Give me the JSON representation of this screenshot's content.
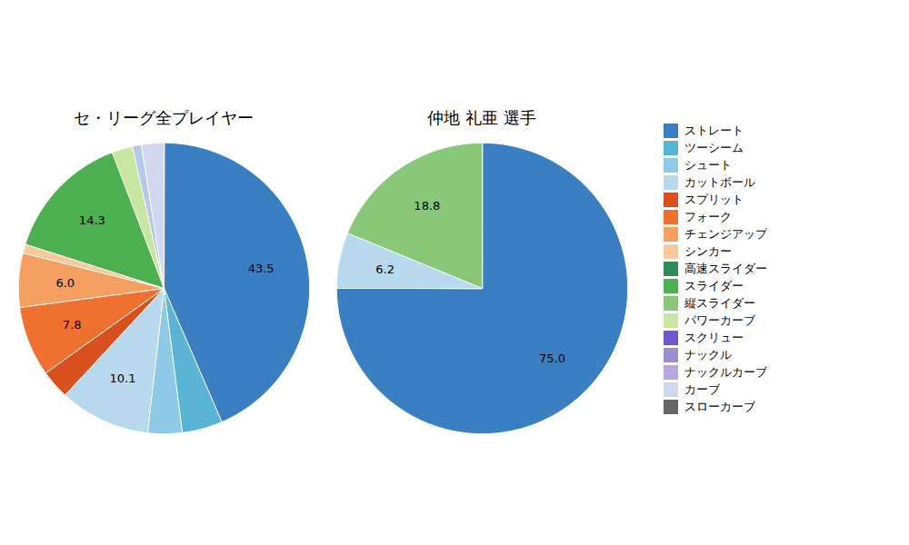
{
  "chart_data": [
    {
      "type": "pie",
      "title": "セ・リーグ全プレイヤー",
      "values": [
        43.5,
        4.5,
        3.8,
        10.1,
        3.2,
        7.8,
        6.0,
        1.0,
        14.3,
        2.3,
        1.0,
        2.5
      ],
      "value_labels": [
        "43.5",
        null,
        null,
        "10.1",
        null,
        "7.8",
        "6.0",
        null,
        "14.3",
        null,
        null,
        null
      ],
      "colors": [
        "#3a7fc1",
        "#5ab4d6",
        "#8ecae6",
        "#b8d9ee",
        "#d94f1e",
        "#f07030",
        "#f5a060",
        "#f8c99a",
        "#4caf50",
        "#c8e6a0",
        "#b8c8e8",
        "#d0d8f0"
      ],
      "data_labels": true
    },
    {
      "type": "pie",
      "title": "仲地 礼亜  選手",
      "values": [
        75.0,
        6.2,
        18.8
      ],
      "value_labels": [
        "75.0",
        "6.2",
        "18.8"
      ],
      "colors": [
        "#3a7fc1",
        "#b8d9ee",
        "#88c878"
      ],
      "data_labels": true
    },
    {
      "type": "legend",
      "series": [
        {
          "name": "ストレート",
          "color": "#3a7fc1"
        },
        {
          "name": "ツーシーム",
          "color": "#5ab4d6"
        },
        {
          "name": "シュート",
          "color": "#8ecae6"
        },
        {
          "name": "カットボール",
          "color": "#b8d9ee"
        },
        {
          "name": "スプリット",
          "color": "#d94f1e"
        },
        {
          "name": "フォーク",
          "color": "#f07030"
        },
        {
          "name": "チェンジアップ",
          "color": "#f5a060"
        },
        {
          "name": "シンカー",
          "color": "#f8c99a"
        },
        {
          "name": "高速スライダー",
          "color": "#2e8b57"
        },
        {
          "name": "スライダー",
          "color": "#4caf50"
        },
        {
          "name": "縦スライダー",
          "color": "#88c878"
        },
        {
          "name": "パワーカーブ",
          "color": "#c8e6a0"
        },
        {
          "name": "スクリュー",
          "color": "#6a5acd"
        },
        {
          "name": "ナックル",
          "color": "#9b8fd4"
        },
        {
          "name": "ナックルカーブ",
          "color": "#b8a8e0"
        },
        {
          "name": "カーブ",
          "color": "#d0d8f0"
        },
        {
          "name": "スローカーブ",
          "color": "#666666"
        }
      ]
    }
  ]
}
